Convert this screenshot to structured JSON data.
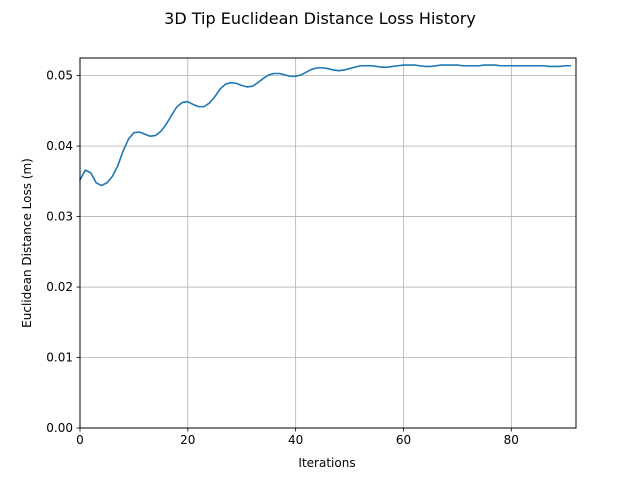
{
  "chart_data": {
    "type": "line",
    "title": "3D Tip Euclidean Distance Loss History",
    "xlabel": "Iterations",
    "ylabel": "Euclidean Distance Loss (m)",
    "xlim": [
      0,
      92
    ],
    "ylim": [
      0,
      0.0525
    ],
    "xticks": [
      0,
      20,
      40,
      60,
      80
    ],
    "xtick_labels": [
      "0",
      "20",
      "40",
      "60",
      "80"
    ],
    "yticks": [
      0,
      0.01,
      0.02,
      0.03,
      0.04,
      0.05
    ],
    "ytick_labels": [
      "0.00",
      "0.01",
      "0.02",
      "0.03",
      "0.04",
      "0.05"
    ],
    "grid": true,
    "series": [
      {
        "name": "loss",
        "color": "#1f77b4",
        "x": [
          0,
          1,
          2,
          3,
          4,
          5,
          6,
          7,
          8,
          9,
          10,
          11,
          12,
          13,
          14,
          15,
          16,
          17,
          18,
          19,
          20,
          21,
          22,
          23,
          24,
          25,
          26,
          27,
          28,
          29,
          30,
          31,
          32,
          33,
          34,
          35,
          36,
          37,
          38,
          39,
          40,
          41,
          42,
          43,
          44,
          45,
          46,
          47,
          48,
          49,
          50,
          51,
          52,
          53,
          54,
          55,
          56,
          57,
          58,
          59,
          60,
          61,
          62,
          63,
          64,
          65,
          66,
          67,
          68,
          69,
          70,
          71,
          72,
          73,
          74,
          75,
          76,
          77,
          78,
          79,
          80,
          81,
          82,
          83,
          84,
          85,
          86,
          87,
          88,
          89,
          90,
          91
        ],
        "y": [
          0.0352,
          0.0366,
          0.0362,
          0.0348,
          0.0344,
          0.0348,
          0.0357,
          0.0372,
          0.0393,
          0.041,
          0.0419,
          0.042,
          0.0417,
          0.0414,
          0.0415,
          0.0421,
          0.0431,
          0.0444,
          0.0456,
          0.0462,
          0.0463,
          0.0459,
          0.0456,
          0.0456,
          0.0461,
          0.047,
          0.0481,
          0.0488,
          0.049,
          0.0489,
          0.0486,
          0.0484,
          0.0485,
          0.049,
          0.0496,
          0.0501,
          0.0503,
          0.0503,
          0.0501,
          0.0499,
          0.0499,
          0.0501,
          0.0505,
          0.0509,
          0.0511,
          0.0511,
          0.051,
          0.0508,
          0.0507,
          0.0508,
          0.051,
          0.0512,
          0.0514,
          0.0514,
          0.0514,
          0.0513,
          0.0512,
          0.0512,
          0.0513,
          0.0514,
          0.0515,
          0.0515,
          0.0515,
          0.0514,
          0.0513,
          0.0513,
          0.0514,
          0.0515,
          0.0515,
          0.0515,
          0.0515,
          0.0514,
          0.0514,
          0.0514,
          0.0514,
          0.0515,
          0.0515,
          0.0515,
          0.0514,
          0.0514,
          0.0514,
          0.0514,
          0.0514,
          0.0514,
          0.0514,
          0.0514,
          0.0514,
          0.0513,
          0.0513,
          0.0513,
          0.0514,
          0.0514
        ]
      }
    ]
  }
}
